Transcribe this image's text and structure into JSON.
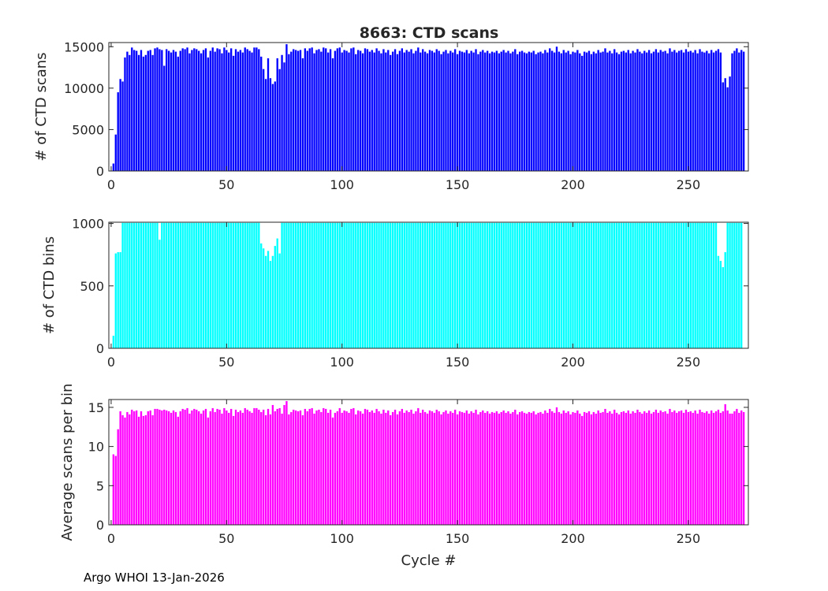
{
  "figure": {
    "title": "8663: CTD scans",
    "footer": "Argo WHOI 13-Jan-2026"
  },
  "chart_data": [
    {
      "type": "bar",
      "title": "8663: CTD scans",
      "xlabel": "",
      "ylabel": "# of CTD scans",
      "xlim": [
        -1,
        276
      ],
      "ylim": [
        0,
        15500
      ],
      "xticks": [
        0,
        50,
        100,
        150,
        200,
        250
      ],
      "yticks": [
        0,
        5000,
        10000,
        15000
      ],
      "color": "#0000ff",
      "x_start": 1,
      "values": [
        900,
        4400,
        9500,
        11100,
        10800,
        13700,
        14400,
        14000,
        14900,
        14600,
        14500,
        14000,
        14600,
        13800,
        14000,
        14500,
        14600,
        14000,
        14800,
        14900,
        14700,
        14600,
        12700,
        14700,
        14500,
        14300,
        14600,
        14400,
        13800,
        14500,
        14800,
        14700,
        14900,
        14200,
        14600,
        14800,
        14700,
        14500,
        14200,
        14600,
        14800,
        13700,
        14500,
        14900,
        14400,
        14800,
        14700,
        14200,
        14900,
        14600,
        14300,
        14800,
        13900,
        14700,
        14400,
        14600,
        14300,
        14900,
        14700,
        14500,
        14300,
        14900,
        14900,
        14700,
        13800,
        12300,
        11100,
        13600,
        11200,
        10500,
        10800,
        13600,
        12300,
        14000,
        13100,
        15300,
        14100,
        14400,
        14700,
        14600,
        14500,
        14600,
        13600,
        14800,
        14500,
        14800,
        14900,
        14200,
        14600,
        14700,
        14400,
        14900,
        14800,
        14300,
        14700,
        13600,
        14500,
        14800,
        14900,
        14300,
        14600,
        14500,
        14300,
        14800,
        14900,
        14100,
        14600,
        14500,
        14200,
        14800,
        14700,
        14400,
        14600,
        14300,
        14800,
        14500,
        14200,
        14700,
        14300,
        14600,
        14000,
        14400,
        14700,
        14100,
        14500,
        14800,
        14300,
        14600,
        14400,
        14700,
        14200,
        14500,
        14900,
        14300,
        14700,
        14400,
        14200,
        14600,
        14500,
        14300,
        14700,
        14500,
        14100,
        14400,
        14600,
        14200,
        14500,
        14300,
        14700,
        14100,
        14500,
        14400,
        14300,
        14600,
        14200,
        14500,
        14300,
        14700,
        14100,
        14400,
        14600,
        14300,
        14500,
        14200,
        14400,
        14300,
        14500,
        14200,
        14400,
        14600,
        14300,
        14500,
        14200,
        14400,
        14700,
        14100,
        14400,
        14500,
        14300,
        14200,
        14400,
        14300,
        14500,
        14100,
        14300,
        14400,
        14200,
        14600,
        14300,
        14800,
        14500,
        14300,
        15000,
        14400,
        14200,
        14600,
        14300,
        14500,
        14100,
        14400,
        14300,
        14600,
        14200,
        13900,
        14400,
        14300,
        14500,
        14100,
        14400,
        14200,
        14600,
        14300,
        14400,
        14800,
        14300,
        14500,
        14200,
        14700,
        14300,
        14100,
        14400,
        14500,
        14300,
        14600,
        14200,
        14500,
        14300,
        14700,
        14400,
        14200,
        14500,
        14300,
        14600,
        14200,
        14400,
        14700,
        14300,
        14600,
        14400,
        14500,
        14200,
        14800,
        14400,
        14600,
        14300,
        14500,
        14600,
        14300,
        14700,
        14400,
        14500,
        14300,
        14600,
        14200,
        14700,
        14400,
        14300,
        14500,
        14200,
        14600,
        14300,
        14500,
        14700,
        14300,
        10700,
        11200,
        10100,
        11400,
        14200,
        14500,
        14800,
        14300,
        14600,
        14400
      ]
    },
    {
      "type": "bar",
      "title": "",
      "xlabel": "",
      "ylabel": "# of CTD bins",
      "xlim": [
        -1,
        276
      ],
      "ylim": [
        0,
        1010
      ],
      "xticks": [
        0,
        50,
        100,
        150,
        200,
        250
      ],
      "yticks": [
        0,
        500,
        1000
      ],
      "color": "#00ffff",
      "x_start": 1,
      "values": [
        100,
        760,
        770,
        770,
        1005,
        1005,
        1005,
        1005,
        1005,
        1005,
        1005,
        1005,
        1005,
        1005,
        1005,
        1005,
        1005,
        1005,
        1005,
        1005,
        870,
        1005,
        1005,
        1005,
        1005,
        1005,
        1005,
        1005,
        1005,
        1005,
        1005,
        1005,
        1005,
        1005,
        1005,
        1005,
        1005,
        1005,
        1005,
        1005,
        1005,
        1005,
        1005,
        1005,
        1005,
        1005,
        1005,
        1005,
        1005,
        1005,
        1005,
        1005,
        1005,
        1005,
        1005,
        1005,
        1005,
        1005,
        1005,
        1005,
        1005,
        1005,
        1005,
        1005,
        840,
        800,
        740,
        780,
        700,
        740,
        820,
        880,
        760,
        1005,
        1005,
        1005,
        1005,
        1005,
        1005,
        1005,
        1005,
        1005,
        1005,
        1005,
        1005,
        1005,
        1005,
        1005,
        1005,
        1005,
        1005,
        1005,
        1005,
        1005,
        1005,
        1005,
        1005,
        1005,
        1005,
        1005,
        1005,
        1005,
        1005,
        1005,
        1005,
        1005,
        1005,
        1005,
        1005,
        1005,
        1005,
        1005,
        1005,
        1005,
        1005,
        1005,
        1005,
        1005,
        1005,
        1005,
        1005,
        1005,
        1005,
        1005,
        1005,
        1005,
        1005,
        1005,
        1005,
        1005,
        1005,
        1005,
        1005,
        1005,
        1005,
        1005,
        1005,
        1005,
        1005,
        1005,
        1005,
        1005,
        1005,
        1005,
        1005,
        1005,
        1005,
        1005,
        1005,
        1005,
        1005,
        1005,
        1005,
        1005,
        1005,
        1005,
        1005,
        1005,
        1005,
        1005,
        1005,
        1005,
        1005,
        1005,
        1005,
        1005,
        1005,
        1005,
        1005,
        1005,
        1005,
        1005,
        1005,
        1005,
        1005,
        1005,
        1005,
        1005,
        1005,
        1005,
        1005,
        1005,
        1005,
        1005,
        1005,
        1005,
        1005,
        1005,
        1005,
        1005,
        1005,
        1005,
        1005,
        1005,
        1005,
        1005,
        1005,
        1005,
        1005,
        1005,
        1005,
        1005,
        1005,
        1005,
        1005,
        1005,
        1005,
        1005,
        1005,
        1005,
        1005,
        1005,
        1005,
        1005,
        1005,
        1005,
        1005,
        1005,
        1005,
        1005,
        1005,
        1005,
        1005,
        1005,
        1005,
        1005,
        1005,
        1005,
        1005,
        1005,
        1005,
        1005,
        1005,
        1005,
        1005,
        1005,
        1005,
        1005,
        1005,
        1005,
        1005,
        1005,
        1005,
        1005,
        1005,
        1005,
        1005,
        1005,
        1005,
        1005,
        1005,
        1005,
        1005,
        1005,
        1005,
        1005,
        1005,
        1005,
        1005,
        1005,
        1005,
        1005,
        740,
        700,
        650,
        770,
        1005,
        1005,
        1005,
        1005,
        1005,
        1005,
        1005
      ]
    },
    {
      "type": "bar",
      "title": "",
      "xlabel": "Cycle #",
      "ylabel": "Average scans per bin",
      "xlim": [
        -1,
        276
      ],
      "ylim": [
        0,
        16
      ],
      "xticks": [
        0,
        50,
        100,
        150,
        200,
        250
      ],
      "yticks": [
        0,
        5,
        10,
        15
      ],
      "color": "#ff00ff",
      "x_start": 1,
      "values": [
        9.0,
        8.8,
        12.2,
        14.5,
        14.0,
        13.7,
        14.4,
        14.1,
        14.7,
        14.5,
        14.6,
        13.8,
        14.5,
        13.9,
        14.0,
        14.5,
        14.6,
        14.0,
        14.8,
        14.8,
        14.7,
        14.6,
        14.7,
        14.6,
        14.5,
        14.3,
        14.6,
        14.4,
        13.8,
        14.5,
        14.8,
        14.7,
        14.9,
        14.2,
        14.6,
        14.8,
        14.7,
        14.5,
        14.2,
        14.6,
        14.8,
        13.7,
        14.5,
        14.9,
        14.4,
        14.8,
        14.7,
        14.2,
        14.9,
        14.6,
        14.3,
        14.8,
        13.9,
        14.7,
        14.4,
        14.6,
        14.3,
        14.9,
        14.7,
        14.5,
        14.3,
        14.9,
        14.9,
        14.7,
        14.4,
        14.7,
        14.0,
        14.8,
        14.1,
        15.3,
        14.5,
        14.8,
        14.9,
        14.2,
        15.3,
        15.8,
        14.1,
        14.4,
        14.7,
        14.6,
        14.5,
        14.6,
        14.0,
        14.8,
        14.5,
        14.8,
        14.9,
        14.2,
        14.6,
        14.7,
        14.4,
        14.9,
        14.8,
        14.3,
        14.7,
        13.7,
        14.3,
        14.5,
        14.9,
        14.3,
        14.6,
        14.5,
        14.3,
        14.8,
        14.9,
        14.1,
        14.6,
        14.5,
        14.2,
        14.8,
        14.7,
        14.4,
        14.6,
        14.3,
        14.8,
        14.5,
        14.2,
        14.7,
        14.3,
        14.6,
        14.0,
        14.4,
        14.7,
        14.1,
        14.5,
        14.8,
        14.3,
        14.6,
        14.4,
        14.7,
        14.2,
        14.5,
        14.9,
        14.3,
        14.7,
        14.4,
        14.2,
        14.6,
        14.5,
        14.3,
        14.7,
        14.5,
        14.1,
        14.4,
        14.6,
        14.2,
        14.5,
        14.3,
        14.7,
        14.1,
        14.5,
        14.4,
        14.3,
        14.6,
        14.2,
        14.5,
        14.3,
        14.7,
        14.1,
        14.4,
        14.6,
        14.3,
        14.5,
        14.2,
        14.4,
        14.3,
        14.5,
        14.2,
        14.4,
        14.6,
        14.3,
        14.5,
        14.2,
        14.4,
        14.7,
        14.1,
        14.4,
        14.5,
        14.3,
        14.2,
        14.4,
        14.3,
        14.5,
        14.1,
        14.3,
        14.4,
        14.2,
        14.6,
        14.3,
        14.8,
        14.5,
        14.3,
        15.0,
        14.4,
        14.2,
        14.6,
        14.3,
        14.5,
        14.1,
        14.4,
        14.3,
        14.6,
        14.2,
        13.9,
        14.4,
        14.3,
        14.5,
        14.1,
        14.4,
        14.2,
        14.6,
        14.3,
        14.4,
        14.8,
        14.3,
        14.5,
        14.2,
        14.7,
        14.3,
        14.1,
        14.4,
        14.5,
        14.3,
        14.6,
        14.2,
        14.5,
        14.3,
        14.7,
        14.4,
        14.2,
        14.5,
        14.3,
        14.6,
        14.2,
        14.4,
        14.7,
        14.3,
        14.6,
        14.4,
        14.5,
        14.2,
        14.8,
        14.4,
        14.6,
        14.3,
        14.5,
        14.6,
        14.3,
        14.7,
        14.4,
        14.5,
        14.3,
        14.6,
        14.2,
        14.7,
        14.4,
        14.3,
        14.5,
        14.2,
        14.6,
        14.3,
        14.5,
        14.7,
        14.3,
        14.5,
        15.4,
        14.6,
        14.2,
        14.2,
        14.5,
        14.8,
        14.3,
        14.6,
        14.4
      ]
    }
  ]
}
